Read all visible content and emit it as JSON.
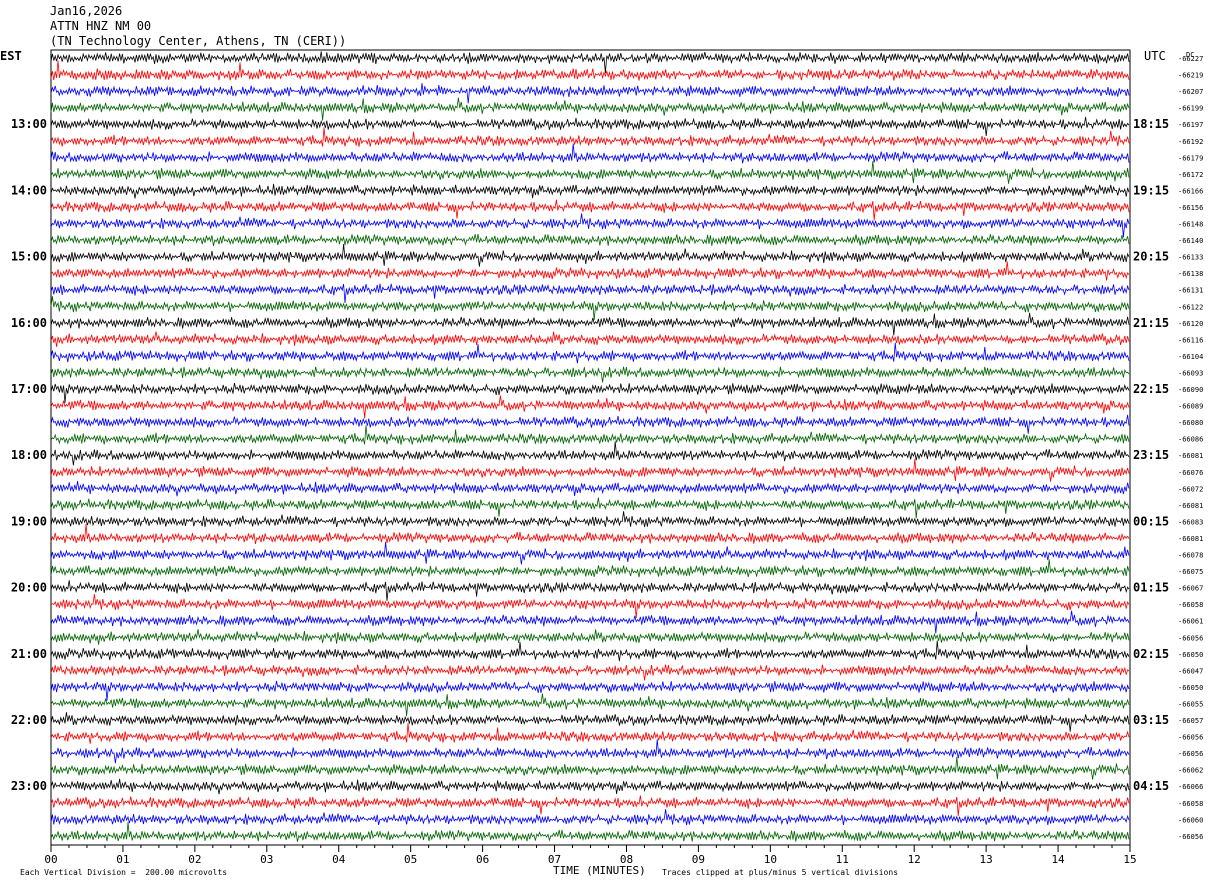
{
  "header": {
    "date": "Jan16,2026",
    "station": "ATTN HNZ NM 00",
    "location": "(TN Technology Center, Athens, TN (CERI))"
  },
  "labels": {
    "left_tz": "EST",
    "right_tz": "UTC",
    "dc": "DC",
    "xlabel": "TIME (MINUTES)",
    "scale_note": "Each Vertical Division =  200.00 microvolts",
    "clip_note": "Traces clipped at plus/minus 5 vertical divisions"
  },
  "chart_data": {
    "type": "line",
    "subtype": "helicorder",
    "x_ticks": [
      "00",
      "01",
      "02",
      "03",
      "04",
      "05",
      "06",
      "07",
      "08",
      "09",
      "10",
      "11",
      "12",
      "13",
      "14",
      "15"
    ],
    "xlim": [
      0,
      15
    ],
    "trace_colors": [
      "#000000",
      "#ff0000",
      "#0000ff",
      "#006400"
    ],
    "left_hour_labels": [
      "13:00",
      "14:00",
      "15:00",
      "16:00",
      "17:00",
      "18:00",
      "19:00",
      "20:00",
      "21:00",
      "22:00",
      "23:00"
    ],
    "right_hour_labels": [
      "18:15",
      "19:15",
      "20:15",
      "21:15",
      "22:15",
      "23:15",
      "00:15",
      "01:15",
      "02:15",
      "03:15",
      "04:15"
    ],
    "hour_label_first_row": 4,
    "rows_per_hour": 4,
    "dc_offsets": [
      "-66227",
      "-66219",
      "-66207",
      "-66199",
      "-66197",
      "-66192",
      "-66179",
      "-66172",
      "-66166",
      "-66156",
      "-66148",
      "-66140",
      "-66133",
      "-66138",
      "-66131",
      "-66122",
      "-66120",
      "-66116",
      "-66104",
      "-66093",
      "-66090",
      "-66089",
      "-66080",
      "-66086",
      "-66081",
      "-66076",
      "-66072",
      "-66081",
      "-66083",
      "-66081",
      "-66078",
      "-66075",
      "-66067",
      "-66058",
      "-66061",
      "-66056",
      "-66050",
      "-66047",
      "-66050",
      "-66055",
      "-66057",
      "-66056",
      "-66056",
      "-66062",
      "-66066",
      "-66058",
      "-66060",
      "-66056"
    ]
  }
}
